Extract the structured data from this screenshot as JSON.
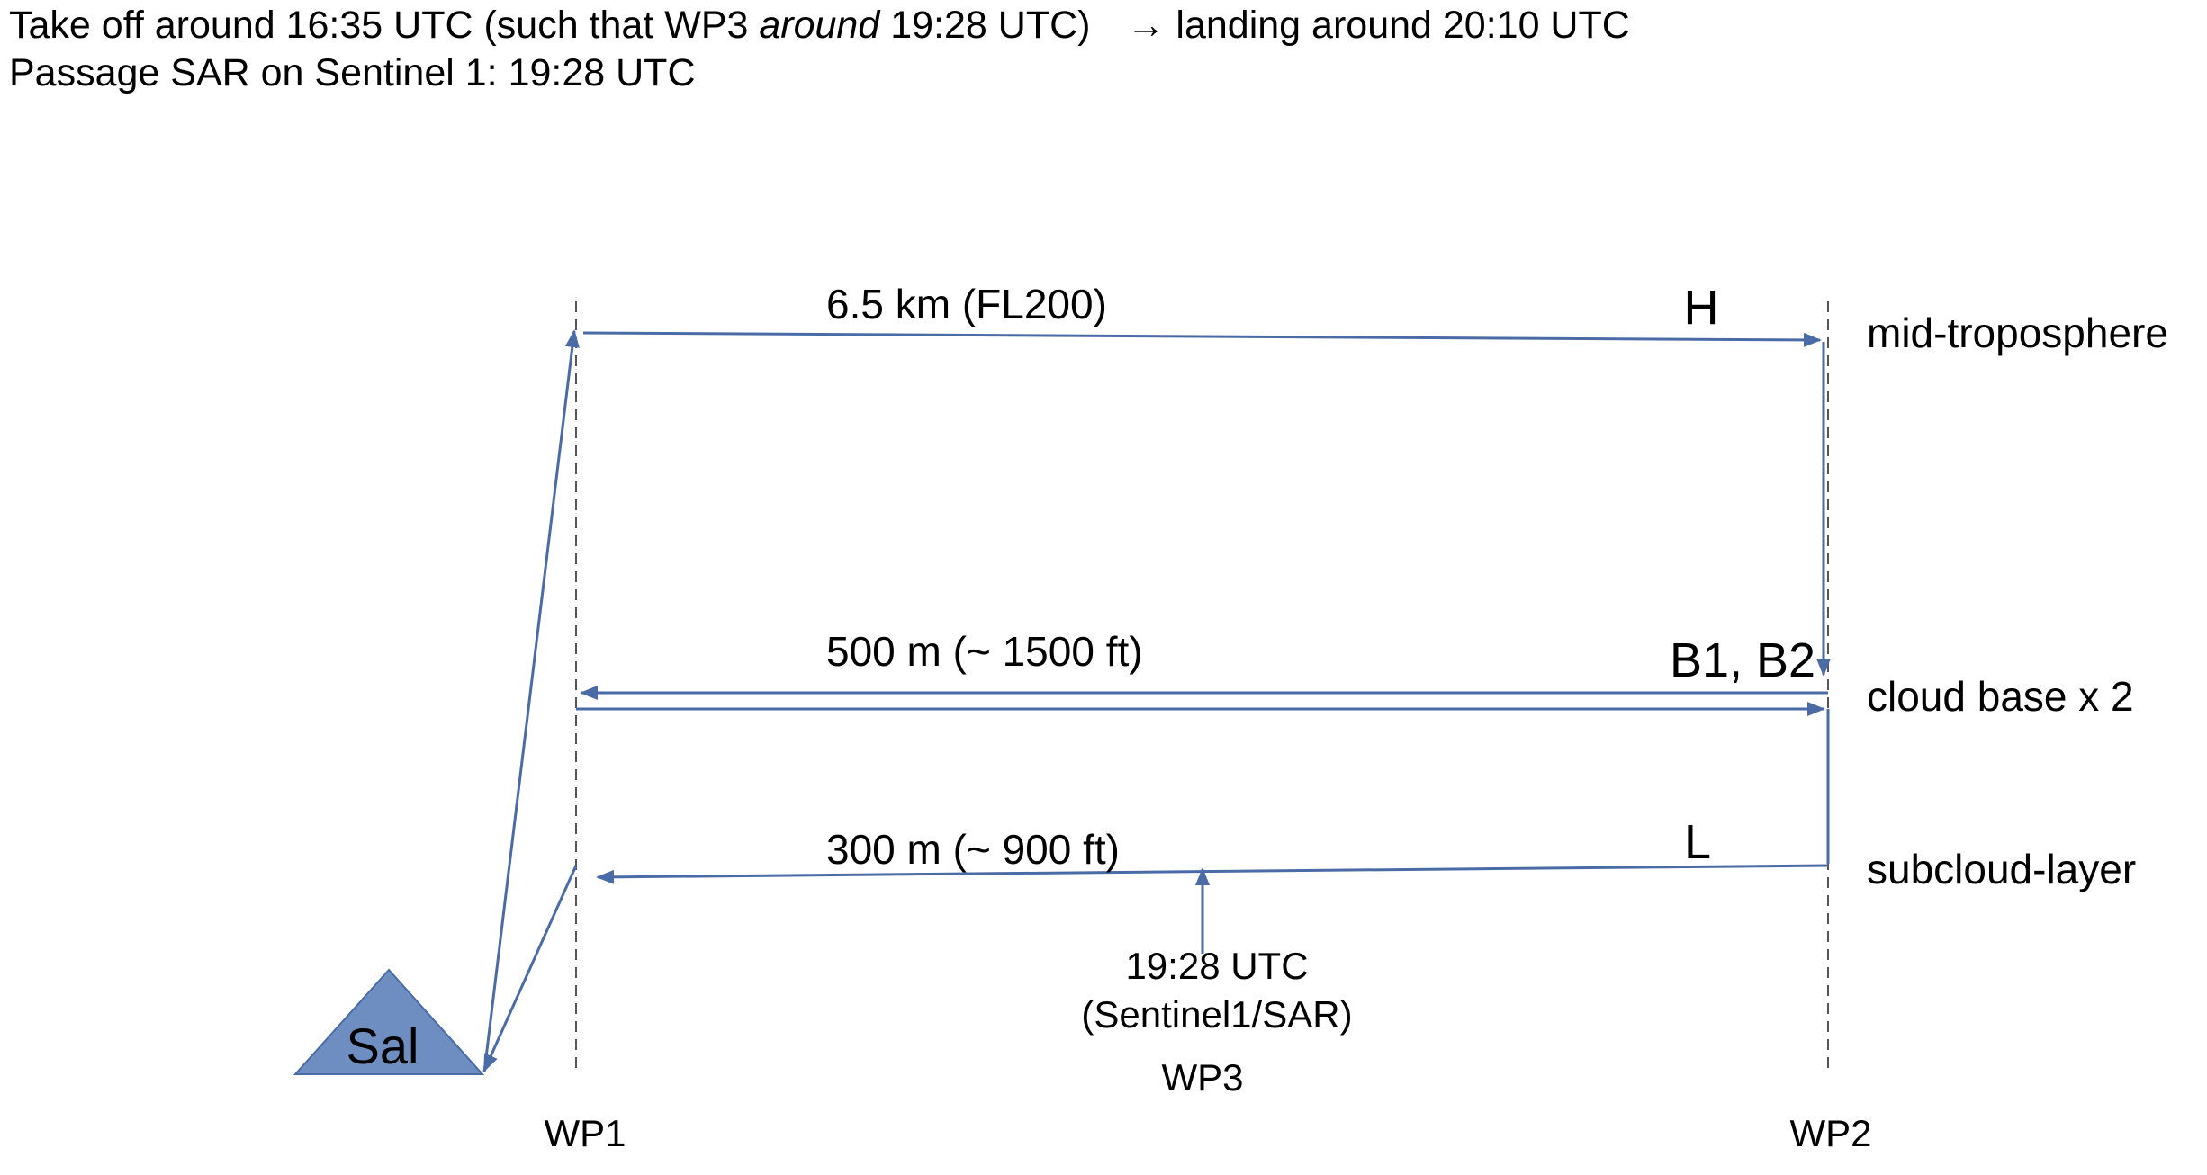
{
  "header": {
    "line1": {
      "part1": "Take off around 16:35 UTC (such that WP3 ",
      "emphasis": "around",
      "part2": " 19:28 UTC)",
      "part3": "→ landing around 20:10 UTC"
    },
    "line2": "Passage SAR on Sentinel 1: 19:28 UTC"
  },
  "diagram": {
    "legs": {
      "high": {
        "altitude_label": "6.5 km (FL200)",
        "letter": "H",
        "layer_name": "mid-troposphere"
      },
      "base": {
        "altitude_label": "500 m (~ 1500 ft)",
        "letter": "B1, B2",
        "layer_name": "cloud base x 2"
      },
      "low": {
        "altitude_label": "300 m (~ 900 ft)",
        "letter": "L",
        "layer_name": "subcloud-layer"
      }
    },
    "sar_pass": {
      "time": "19:28 UTC",
      "instrument": "(Sentinel1/SAR)"
    },
    "waypoints": {
      "wp1": "WP1",
      "wp2": "WP2",
      "wp3": "WP3"
    },
    "airport": "Sal",
    "colors": {
      "track": "#4A6BA6",
      "airport_fill": "#6E8EC2",
      "guide": "#555555"
    }
  }
}
